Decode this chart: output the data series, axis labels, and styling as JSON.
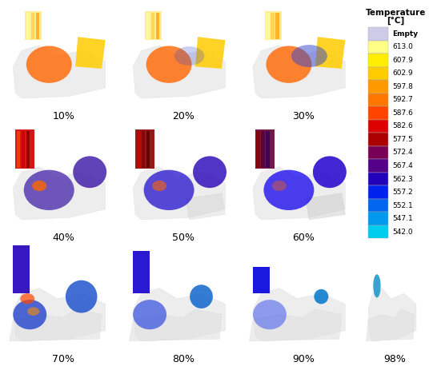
{
  "colorbar_title": "Temperature\n[°C]",
  "colorbar_values": [
    "Empty",
    "613.0",
    "607.9",
    "602.9",
    "597.8",
    "592.7",
    "587.6",
    "582.6",
    "577.5",
    "572.4",
    "567.4",
    "562.3",
    "557.2",
    "552.1",
    "547.1",
    "542.0"
  ],
  "colorbar_colors": [
    "#cccce8",
    "#ffff88",
    "#ffee00",
    "#ffcc00",
    "#ff9900",
    "#ff7700",
    "#ff4400",
    "#dd0000",
    "#aa0000",
    "#770055",
    "#550088",
    "#2200bb",
    "#0022ee",
    "#0066ee",
    "#0099ee",
    "#00ccee"
  ],
  "grid_labels": [
    "10%",
    "20%",
    "30%",
    "40%",
    "50%",
    "60%",
    "70%",
    "80%",
    "90%",
    "98%"
  ],
  "background_color": "#ffffff",
  "border_color": "#555555",
  "label_fontsize": 9,
  "colorbar_title_fontsize": 7.5,
  "colorbar_value_fontsize": 6.5
}
